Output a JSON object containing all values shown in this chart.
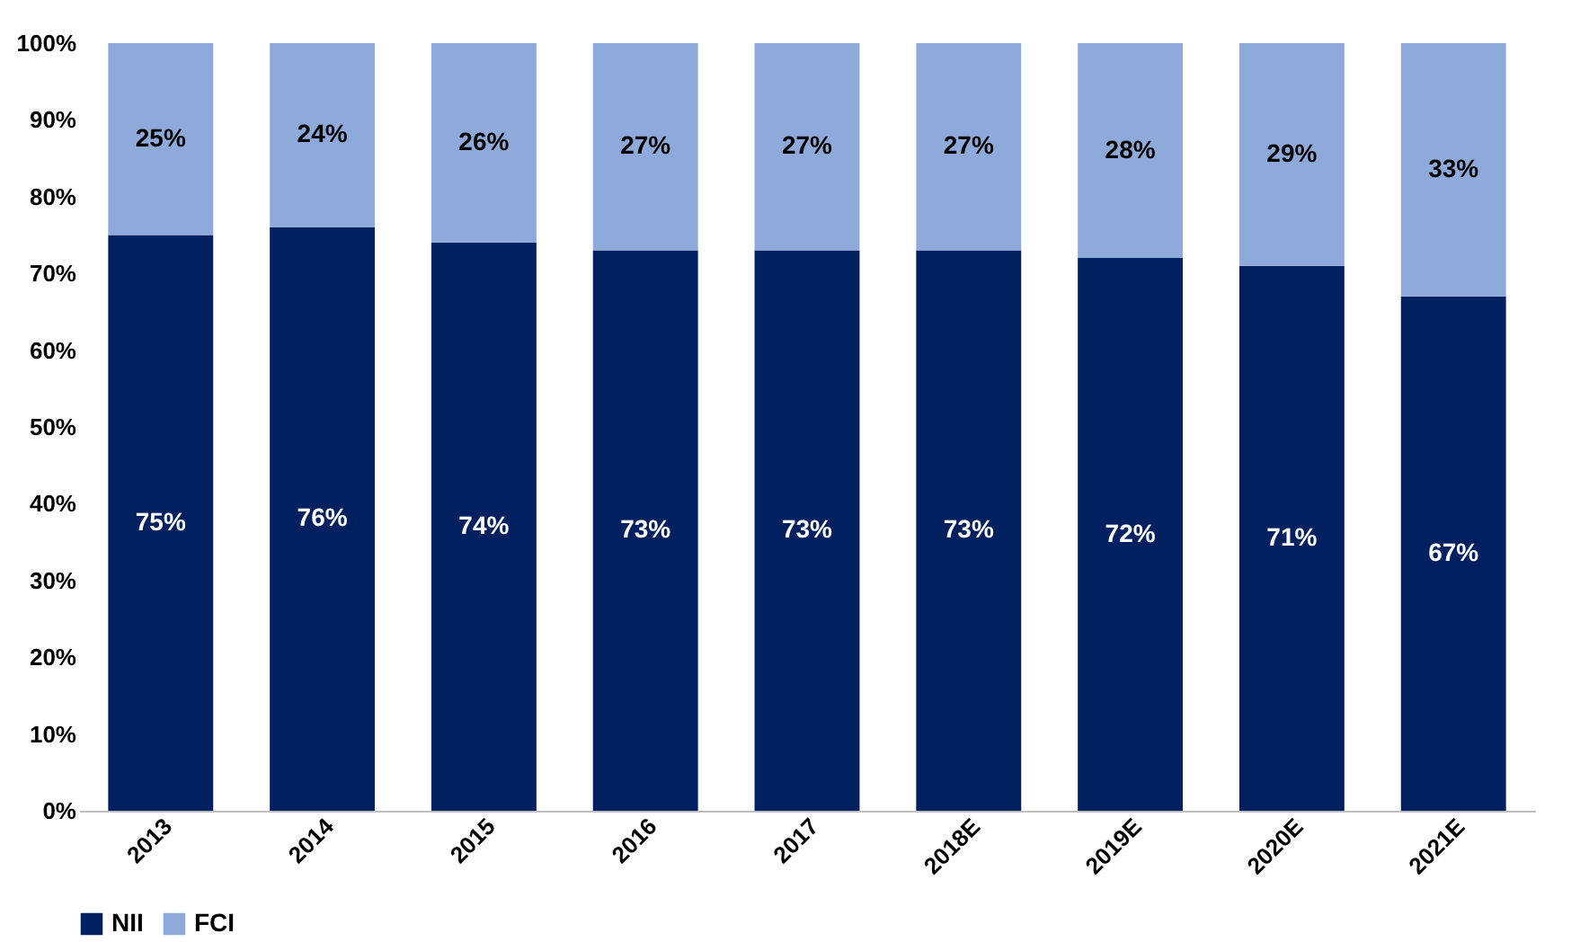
{
  "chart_data": {
    "type": "bar",
    "stacked": true,
    "categories": [
      "2013",
      "2014",
      "2015",
      "2016",
      "2017",
      "2018E",
      "2019E",
      "2020E",
      "2021E"
    ],
    "series": [
      {
        "name": "NII",
        "color": "#002060",
        "values": [
          75,
          76,
          74,
          73,
          73,
          73,
          72,
          71,
          67
        ],
        "value_labels": [
          "75%",
          "76%",
          "74%",
          "73%",
          "73%",
          "73%",
          "72%",
          "71%",
          "67%"
        ]
      },
      {
        "name": "FCI",
        "color": "#8eaadb",
        "values": [
          25,
          24,
          26,
          27,
          27,
          27,
          28,
          29,
          33
        ],
        "value_labels": [
          "25%",
          "24%",
          "26%",
          "27%",
          "27%",
          "27%",
          "28%",
          "29%",
          "33%"
        ]
      }
    ],
    "ylim": [
      0,
      100
    ],
    "yticks": [
      {
        "value": 0,
        "label": "0%"
      },
      {
        "value": 10,
        "label": "10%"
      },
      {
        "value": 20,
        "label": "20%"
      },
      {
        "value": 30,
        "label": "30%"
      },
      {
        "value": 40,
        "label": "40%"
      },
      {
        "value": 50,
        "label": "50%"
      },
      {
        "value": 60,
        "label": "60%"
      },
      {
        "value": 70,
        "label": "70%"
      },
      {
        "value": 80,
        "label": "80%"
      },
      {
        "value": 90,
        "label": "90%"
      },
      {
        "value": 100,
        "label": "100%"
      }
    ],
    "grid": false,
    "legend": "bottom"
  }
}
